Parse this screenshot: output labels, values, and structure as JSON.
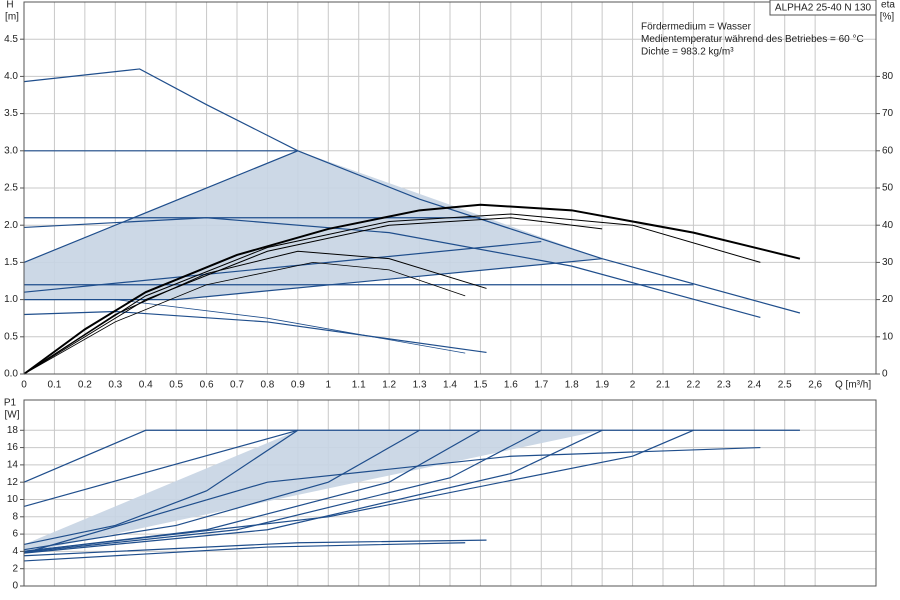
{
  "chart_data": [
    {
      "type": "line",
      "title": "ALPHA2 25-40 N 130",
      "annotations": [
        "Fördermedium = Wasser",
        "Medientemperatur während des Betriebes = 60 °C",
        "Dichte = 983.2 kg/m³"
      ],
      "ylabel": "H",
      "yunit": "[m]",
      "y2label": "eta",
      "y2unit": "[%]",
      "xlabel": "Q [m³/h]",
      "xlim": [
        0,
        2.8
      ],
      "ylim": [
        0,
        5.0
      ],
      "y2lim": [
        0,
        100
      ],
      "grid": true,
      "xtick_labels": true,
      "xticks": [
        0,
        0.1,
        0.2,
        0.3,
        0.4,
        0.5,
        0.6,
        0.7,
        0.8,
        0.9,
        1.0,
        1.1,
        1.2,
        1.3,
        1.4,
        1.5,
        1.6,
        1.7,
        1.8,
        1.9,
        2.0,
        2.1,
        2.2,
        2.3,
        2.4,
        2.5,
        {
          "value": 2.6,
          "label": "2,6"
        }
      ],
      "yticks": [
        {
          "value": 0,
          "label": "0.0"
        },
        0.5,
        {
          "value": 1,
          "label": "1.0"
        },
        1.5,
        {
          "value": 2,
          "label": "2.0"
        },
        2.5,
        {
          "value": 3,
          "label": "3.0"
        },
        3.5,
        {
          "value": 4,
          "label": "4.0"
        },
        4.5
      ],
      "y2ticks": [
        0,
        10,
        20,
        30,
        40,
        50,
        60,
        70,
        80
      ],
      "areas": [
        {
          "color": "#c6d4e3",
          "x": [
            0,
            0.9,
            1.9,
            0.5,
            0
          ],
          "values": [
            1.5,
            3.0,
            1.55,
            1.0,
            1.0
          ]
        }
      ],
      "series": [
        {
          "color": "#1f4e8c",
          "width": 1.2,
          "x": [
            0,
            0.38,
            0.6,
            0.9,
            1.3,
            1.9,
            2.55
          ],
          "values": [
            3.93,
            4.1,
            3.62,
            3.0,
            2.35,
            1.55,
            0.82
          ]
        },
        {
          "color": "#1f4e8c",
          "width": 1.2,
          "x": [
            0,
            0.9
          ],
          "values": [
            3.0,
            3.0
          ]
        },
        {
          "color": "#1f4e8c",
          "width": 1.2,
          "x": [
            0,
            0.9
          ],
          "values": [
            1.5,
            3.0
          ]
        },
        {
          "color": "#1f4e8c",
          "width": 1.2,
          "x": [
            0,
            1.5
          ],
          "values": [
            2.1,
            2.1
          ]
        },
        {
          "color": "#1f4e8c",
          "width": 1.2,
          "x": [
            0,
            0.6,
            1.2,
            1.8,
            2.42
          ],
          "values": [
            1.97,
            2.1,
            1.9,
            1.45,
            0.76
          ]
        },
        {
          "color": "#1f4e8c",
          "width": 1.2,
          "x": [
            0,
            2.2
          ],
          "values": [
            1.2,
            1.2
          ]
        },
        {
          "color": "#1f4e8c",
          "width": 1.2,
          "x": [
            0,
            0.5,
            1.9
          ],
          "values": [
            1.0,
            1.0,
            1.55
          ]
        },
        {
          "color": "#1f4e8c",
          "width": 1.2,
          "x": [
            0,
            1.7
          ],
          "values": [
            1.1,
            1.78
          ]
        },
        {
          "color": "#1f4e8c",
          "width": 1.2,
          "x": [
            0,
            0.3,
            0.8,
            1.52
          ],
          "values": [
            0.8,
            0.84,
            0.7,
            0.29
          ]
        },
        {
          "color": "#1f4e8c",
          "width": 0.8,
          "x": [
            0.3,
            0.8,
            1.45
          ],
          "values": [
            1.0,
            0.75,
            0.28
          ]
        },
        {
          "color": "#000000",
          "width": 2,
          "axis": "y2",
          "x": [
            0,
            0.2,
            0.4,
            0.7,
            1.0,
            1.3,
            1.5,
            1.8,
            2.0,
            2.2,
            2.55
          ],
          "values": [
            0,
            12,
            22,
            32,
            39,
            44,
            45.5,
            44,
            41,
            38,
            31
          ]
        },
        {
          "color": "#000000",
          "width": 1,
          "axis": "y2",
          "x": [
            0,
            0.3,
            0.6,
            0.9,
            1.2,
            1.52
          ],
          "values": [
            0,
            16,
            27,
            33,
            31,
            23
          ]
        },
        {
          "color": "#000000",
          "width": 0.8,
          "axis": "y2",
          "x": [
            0,
            0.3,
            0.6,
            0.95,
            1.2,
            1.45
          ],
          "values": [
            0,
            14,
            24,
            30,
            28,
            21
          ]
        },
        {
          "color": "#000000",
          "width": 1,
          "axis": "y2",
          "x": [
            0,
            0.4,
            0.8,
            1.2,
            1.6,
            2.0,
            2.42
          ],
          "values": [
            0,
            21,
            34,
            41,
            43,
            40,
            30
          ]
        },
        {
          "color": "#000000",
          "width": 1,
          "axis": "y2",
          "x": [
            0,
            0.4,
            0.8,
            1.2,
            1.6,
            1.9
          ],
          "values": [
            0,
            20,
            33,
            40,
            42,
            39
          ]
        }
      ]
    },
    {
      "type": "line",
      "ylabel": "P1",
      "yunit": "[W]",
      "xlim": [
        0,
        2.8
      ],
      "ylim": [
        0,
        21.5
      ],
      "grid": true,
      "xtick_labels": false,
      "xticks": [
        0,
        0.1,
        0.2,
        0.3,
        0.4,
        0.5,
        0.6,
        0.7,
        0.8,
        0.9,
        1.0,
        1.1,
        1.2,
        1.3,
        1.4,
        1.5,
        1.6,
        1.7,
        1.8,
        1.9,
        2.0,
        2.1,
        2.2,
        2.3,
        2.4,
        2.5,
        2.6
      ],
      "yticks": [
        0,
        2,
        4,
        6,
        8,
        10,
        12,
        14,
        16,
        18
      ],
      "areas": [
        {
          "color": "#c6d4e3",
          "x": [
            0,
            0.9,
            1.9,
            0
          ],
          "values": [
            4.8,
            18,
            18,
            3.8
          ]
        }
      ],
      "series": [
        {
          "color": "#1f4e8c",
          "width": 1.2,
          "x": [
            0,
            0.4,
            2.55
          ],
          "values": [
            12,
            18,
            18
          ]
        },
        {
          "color": "#1f4e8c",
          "width": 1.2,
          "x": [
            0,
            0.9
          ],
          "values": [
            9.2,
            18
          ]
        },
        {
          "color": "#1f4e8c",
          "width": 1.2,
          "x": [
            0,
            0.3,
            0.6,
            0.9
          ],
          "values": [
            4.8,
            7,
            11,
            18
          ]
        },
        {
          "color": "#1f4e8c",
          "width": 1.2,
          "x": [
            0,
            0.5,
            1.0,
            1.3
          ],
          "values": [
            4.2,
            7,
            12,
            18
          ]
        },
        {
          "color": "#1f4e8c",
          "width": 1.2,
          "x": [
            0,
            0.6,
            1.2,
            1.5
          ],
          "values": [
            4,
            6.5,
            12,
            18
          ]
        },
        {
          "color": "#1f4e8c",
          "width": 1.2,
          "x": [
            0,
            0.7,
            1.4,
            1.7
          ],
          "values": [
            3.9,
            6.5,
            12.5,
            18
          ]
        },
        {
          "color": "#1f4e8c",
          "width": 1.2,
          "x": [
            0,
            0.8,
            1.6,
            1.9
          ],
          "values": [
            3.8,
            6.5,
            13,
            18
          ]
        },
        {
          "color": "#1f4e8c",
          "width": 1.2,
          "x": [
            0,
            1.0,
            2.0,
            2.2
          ],
          "values": [
            4,
            8,
            15,
            18
          ]
        },
        {
          "color": "#1f4e8c",
          "width": 1.2,
          "x": [
            0,
            0.8,
            1.6,
            2.42
          ],
          "values": [
            3.8,
            12,
            15,
            16
          ]
        },
        {
          "color": "#1f4e8c",
          "width": 1.2,
          "x": [
            0,
            0.9,
            1.52
          ],
          "values": [
            3.5,
            5.0,
            5.3
          ]
        },
        {
          "color": "#1f4e8c",
          "width": 1.2,
          "x": [
            0,
            0.8,
            1.45
          ],
          "values": [
            2.9,
            4.5,
            5.0
          ]
        }
      ]
    }
  ]
}
